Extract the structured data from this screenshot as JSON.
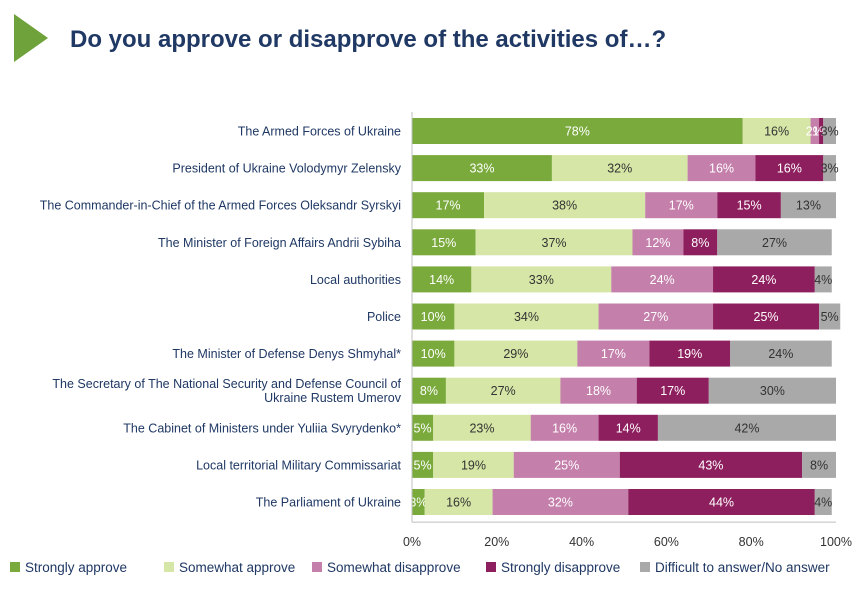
{
  "page": {
    "title": "Do you approve or disapprove of the activities of…?",
    "accent_color": "#6fa23a",
    "title_color": "#1f3864"
  },
  "chart_data": {
    "type": "bar",
    "orientation": "horizontal",
    "stacked": true,
    "title": "Do you approve or disapprove of the activities of…?",
    "xlim": [
      0,
      100
    ],
    "x_ticks": [
      "0%",
      "20%",
      "40%",
      "60%",
      "80%",
      "100%"
    ],
    "grid": false,
    "legend_position": "bottom",
    "categories": [
      "The Armed Forces of Ukraine",
      "President of Ukraine Volodymyr Zelensky",
      "The Commander-in-Chief of the Armed Forces Oleksandr Syrskyi",
      "The Minister of Foreign Affairs Andrii Sybiha",
      "Local authorities",
      "Police",
      "The Minister of Defense Denys Shmyhal*",
      "The Secretary of The National Security and Defense Council of Ukraine Rustem Umerov",
      "The Cabinet of Ministers under Yuliia Svyrydenko*",
      "Local territorial Military Commissariat",
      "The Parliament of Ukraine"
    ],
    "category_lines": [
      [
        "The Armed Forces of Ukraine"
      ],
      [
        "President of Ukraine Volodymyr Zelensky"
      ],
      [
        "The Commander-in-Chief of the Armed Forces Oleksandr Syrskyi"
      ],
      [
        "The Minister of Foreign Affairs Andrii Sybiha"
      ],
      [
        "Local authorities"
      ],
      [
        "Police"
      ],
      [
        "The Minister of Defense Denys Shmyhal*"
      ],
      [
        "The Secretary of The National Security and Defense Council of",
        "Ukraine Rustem Umerov"
      ],
      [
        "The Cabinet of Ministers under Yuliia Svyrydenko*"
      ],
      [
        "Local territorial Military Commissariat"
      ],
      [
        "The Parliament of Ukraine"
      ]
    ],
    "series": [
      {
        "name": "Strongly approve",
        "color": "#7aaa3c",
        "label_color": "#ffffff",
        "values": [
          78,
          33,
          17,
          15,
          14,
          10,
          10,
          8,
          5,
          5,
          3
        ]
      },
      {
        "name": "Somewhat approve",
        "color": "#d6e6a6",
        "label_color": "#333333",
        "values": [
          16,
          32,
          38,
          37,
          33,
          34,
          29,
          27,
          23,
          19,
          16
        ]
      },
      {
        "name": "Somewhat disapprove",
        "color": "#c47fab",
        "label_color": "#ffffff",
        "values": [
          2,
          16,
          17,
          12,
          24,
          27,
          17,
          18,
          16,
          25,
          32
        ]
      },
      {
        "name": "Strongly disapprove",
        "color": "#8e1f5e",
        "label_color": "#ffffff",
        "values": [
          1,
          16,
          15,
          8,
          24,
          25,
          19,
          17,
          14,
          43,
          44
        ]
      },
      {
        "name": "Difficult to answer/No answer",
        "color": "#a9a9a9",
        "label_color": "#333333",
        "values": [
          3,
          3,
          13,
          27,
          4,
          5,
          24,
          30,
          42,
          8,
          4
        ]
      }
    ]
  }
}
